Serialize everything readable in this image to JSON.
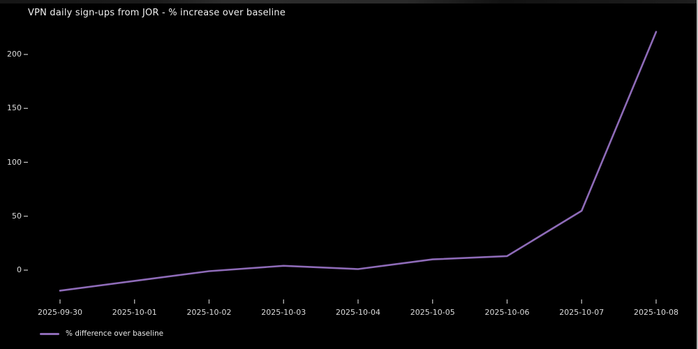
{
  "chart_data": {
    "type": "line",
    "title": "VPN daily sign-ups from JOR - % increase over baseline",
    "x": [
      "2025-09-30",
      "2025-10-01",
      "2025-10-02",
      "2025-10-03",
      "2025-10-04",
      "2025-10-05",
      "2025-10-06",
      "2025-10-07",
      "2025-10-08"
    ],
    "series": [
      {
        "name": "% difference over baseline",
        "values": [
          -19,
          -10,
          -1,
          4,
          1,
          10,
          13,
          55,
          221
        ],
        "color": "#8e6bb8"
      }
    ],
    "xlabel": "",
    "ylabel": "",
    "yticks": [
      0,
      50,
      100,
      150,
      200
    ],
    "ylim": [
      -28,
      228
    ],
    "grid": false,
    "legend_position": "lower-left",
    "colors": {
      "background": "#000000",
      "title_text": "#f0f0f0",
      "tick_text": "#dcdcdc",
      "tick_mark": "#c8c8c8",
      "line": "#8e6bb8"
    }
  }
}
